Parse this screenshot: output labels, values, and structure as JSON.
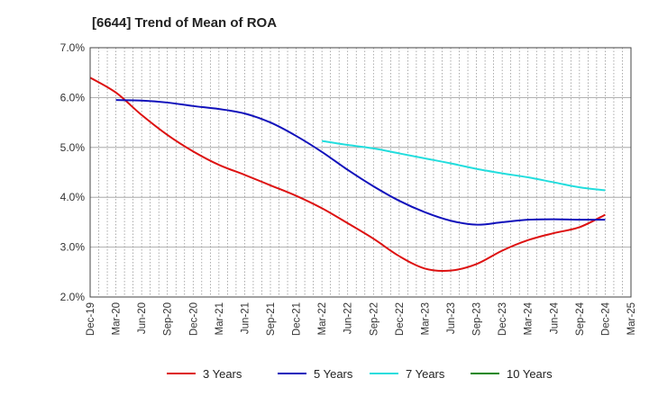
{
  "chart_data": {
    "type": "line",
    "title": "[6644]  Trend of Mean of ROA",
    "xlabel": "",
    "ylabel": "",
    "ylim": [
      2.0,
      7.0
    ],
    "yticks": [
      "2.0%",
      "3.0%",
      "4.0%",
      "5.0%",
      "6.0%",
      "7.0%"
    ],
    "ytick_values": [
      2.0,
      3.0,
      4.0,
      5.0,
      6.0,
      7.0
    ],
    "categories": [
      "Dec-19",
      "Mar-20",
      "Jun-20",
      "Sep-20",
      "Dec-20",
      "Mar-21",
      "Jun-21",
      "Sep-21",
      "Dec-21",
      "Mar-22",
      "Jun-22",
      "Sep-22",
      "Dec-22",
      "Mar-23",
      "Jun-23",
      "Sep-23",
      "Dec-23",
      "Mar-24",
      "Jun-24",
      "Sep-24",
      "Dec-24",
      "Mar-25"
    ],
    "grid": true,
    "legend_position": "bottom",
    "series": [
      {
        "name": "3 Years",
        "color": "#dd1111",
        "values": [
          6.4,
          6.1,
          5.65,
          5.25,
          4.92,
          4.65,
          4.45,
          4.24,
          4.03,
          3.78,
          3.48,
          3.17,
          2.82,
          2.57,
          2.53,
          2.66,
          2.93,
          3.14,
          3.28,
          3.4,
          3.65,
          null
        ]
      },
      {
        "name": "5 Years",
        "color": "#1111bb",
        "values": [
          null,
          5.95,
          5.94,
          5.9,
          5.83,
          5.77,
          5.68,
          5.5,
          5.23,
          4.91,
          4.55,
          4.22,
          3.93,
          3.7,
          3.53,
          3.45,
          3.5,
          3.55,
          3.56,
          3.55,
          3.55,
          null
        ]
      },
      {
        "name": "7 Years",
        "color": "#22dddd",
        "values": [
          null,
          null,
          null,
          null,
          null,
          null,
          null,
          null,
          null,
          5.13,
          5.05,
          4.98,
          4.88,
          4.78,
          4.68,
          4.57,
          4.48,
          4.4,
          4.3,
          4.2,
          4.14,
          null
        ]
      },
      {
        "name": "10 Years",
        "color": "#118811",
        "values": [
          null,
          null,
          null,
          null,
          null,
          null,
          null,
          null,
          null,
          null,
          null,
          null,
          null,
          null,
          null,
          null,
          null,
          null,
          null,
          null,
          null,
          null
        ]
      }
    ]
  }
}
